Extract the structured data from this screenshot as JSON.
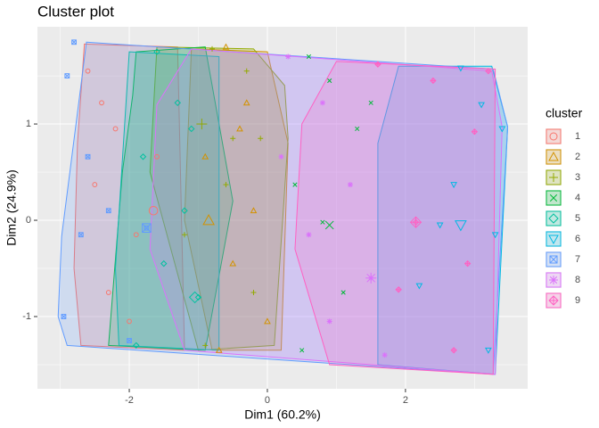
{
  "chart_data": {
    "type": "cluster",
    "title": "Cluster plot",
    "x_label": "Dim1 (60.2%)",
    "y_label": "Dim2 (24.9%)",
    "legend_title": "cluster",
    "xlim": [
      -3.33,
      3.77
    ],
    "ylim": [
      -1.75,
      2.01
    ],
    "xticks": [
      -2,
      0,
      2
    ],
    "yticks": [
      -1,
      0,
      1
    ],
    "xminor": [
      -3,
      -1,
      1,
      3
    ],
    "yminor": [
      -1.5,
      -0.5,
      0.5,
      1.5
    ],
    "grid": true,
    "series": [
      {
        "name": "1",
        "color": "#F8766D",
        "hull_x": [
          -2.65,
          -1.3,
          -1.2,
          -2.7,
          -2.8,
          -2.75
        ],
        "hull_y": [
          1.83,
          1.8,
          -1.35,
          -1.3,
          -0.5,
          0.8
        ],
        "center_x": -1.65,
        "center_y": 0.1,
        "x": [
          -2.6,
          -2.4,
          -2.2,
          -2.5,
          -1.9,
          -2.3,
          -2.0,
          -1.6
        ],
        "y": [
          1.55,
          1.22,
          0.95,
          0.37,
          -0.15,
          -0.75,
          -1.05,
          0.66
        ]
      },
      {
        "name": "2",
        "color": "#D39200",
        "hull_x": [
          -1.1,
          0.0,
          0.3,
          0.2,
          -0.8,
          -1.2
        ],
        "hull_y": [
          1.78,
          1.75,
          0.8,
          -1.35,
          -1.35,
          0.0
        ],
        "center_x": -0.85,
        "center_y": 0.0,
        "x": [
          -0.6,
          -0.3,
          -0.9,
          -0.2,
          -0.5,
          0.0,
          -0.7,
          -0.4
        ],
        "y": [
          1.8,
          1.22,
          0.66,
          0.1,
          -0.45,
          -1.05,
          -1.35,
          0.95
        ]
      },
      {
        "name": "3",
        "color": "#93AA00",
        "hull_x": [
          -1.6,
          -0.2,
          0.25,
          0.3,
          0.1,
          -1.0,
          -1.7
        ],
        "hull_y": [
          1.8,
          1.78,
          1.4,
          0.85,
          -1.3,
          -1.35,
          0.5
        ],
        "center_x": -0.95,
        "center_y": 1.0,
        "x": [
          -0.8,
          -0.3,
          -0.5,
          -0.6,
          -1.2,
          -0.2,
          -0.9,
          -0.1
        ],
        "y": [
          1.78,
          1.55,
          0.85,
          0.37,
          -0.15,
          -0.75,
          -1.3,
          0.85
        ]
      },
      {
        "name": "4",
        "color": "#00BA38",
        "hull_x": [
          -1.9,
          -0.9,
          -0.5,
          -0.9,
          -2.3,
          -2.1,
          -1.95
        ],
        "hull_y": [
          1.75,
          1.8,
          0.2,
          -1.35,
          -1.3,
          0.5,
          1.3
        ],
        "center_x": 0.9,
        "center_y": -0.05,
        "x": [
          0.6,
          0.9,
          1.3,
          0.4,
          0.8,
          1.1,
          0.5,
          1.5
        ],
        "y": [
          1.7,
          1.45,
          0.95,
          0.37,
          -0.02,
          -0.75,
          -1.35,
          1.22
        ]
      },
      {
        "name": "5",
        "color": "#00C19F",
        "hull_x": [
          -2.0,
          -0.7,
          -0.7,
          -2.15,
          -2.2
        ],
        "hull_y": [
          1.75,
          1.7,
          -1.35,
          -1.3,
          -0.5
        ],
        "center_x": -1.05,
        "center_y": -0.8,
        "x": [
          -1.6,
          -1.3,
          -1.8,
          -1.2,
          -1.5,
          -1.0,
          -1.9,
          -1.1
        ],
        "y": [
          1.75,
          1.22,
          0.66,
          0.1,
          -0.45,
          -0.8,
          -1.3,
          0.95
        ]
      },
      {
        "name": "6",
        "color": "#00B9E3",
        "hull_x": [
          1.9,
          3.25,
          3.48,
          3.3,
          1.6,
          1.6
        ],
        "hull_y": [
          1.6,
          1.6,
          0.97,
          -1.6,
          -1.5,
          0.8
        ],
        "center_x": 2.8,
        "center_y": -0.05,
        "x": [
          2.8,
          3.1,
          3.4,
          2.7,
          3.3,
          2.2,
          3.2,
          2.5
        ],
        "y": [
          1.58,
          1.2,
          0.95,
          0.37,
          -0.15,
          -0.68,
          -1.35,
          -0.05
        ]
      },
      {
        "name": "7",
        "color": "#619CFF",
        "hull_x": [
          -2.62,
          3.27,
          3.48,
          3.27,
          -2.9,
          -3.03,
          -2.98
        ],
        "hull_y": [
          1.85,
          1.57,
          0.97,
          -1.6,
          -1.3,
          -1.0,
          -0.17
        ],
        "center_x": -1.75,
        "center_y": -0.08,
        "x": [
          -2.8,
          -2.9,
          -2.6,
          -2.3,
          -1.75,
          -2.95,
          -2.0,
          -2.7
        ],
        "y": [
          1.85,
          1.5,
          0.66,
          0.1,
          -0.08,
          -1.0,
          -1.25,
          -0.15
        ]
      },
      {
        "name": "8",
        "color": "#DB72FB",
        "hull_x": [
          -1.1,
          3.25,
          3.4,
          3.3,
          -1.2,
          -1.7,
          -1.6
        ],
        "hull_y": [
          1.78,
          1.55,
          0.97,
          -1.6,
          -1.35,
          -0.3,
          1.2
        ],
        "center_x": 1.5,
        "center_y": -0.6,
        "x": [
          0.3,
          0.8,
          1.2,
          0.6,
          1.5,
          0.9,
          1.7,
          0.2
        ],
        "y": [
          1.7,
          1.22,
          0.37,
          -0.15,
          -0.6,
          -1.05,
          -1.4,
          0.66
        ]
      },
      {
        "name": "9",
        "color": "#FF61C3",
        "hull_x": [
          1.0,
          3.3,
          3.27,
          0.9,
          0.4,
          0.5
        ],
        "hull_y": [
          1.65,
          1.57,
          -1.6,
          -1.5,
          -0.3,
          1.0
        ],
        "center_x": 2.15,
        "center_y": -0.02,
        "x": [
          1.6,
          2.4,
          3.0,
          2.15,
          2.9,
          1.9,
          2.7,
          3.2
        ],
        "y": [
          1.62,
          1.45,
          0.92,
          -0.02,
          -0.45,
          -0.72,
          -1.35,
          1.55
        ]
      }
    ]
  }
}
